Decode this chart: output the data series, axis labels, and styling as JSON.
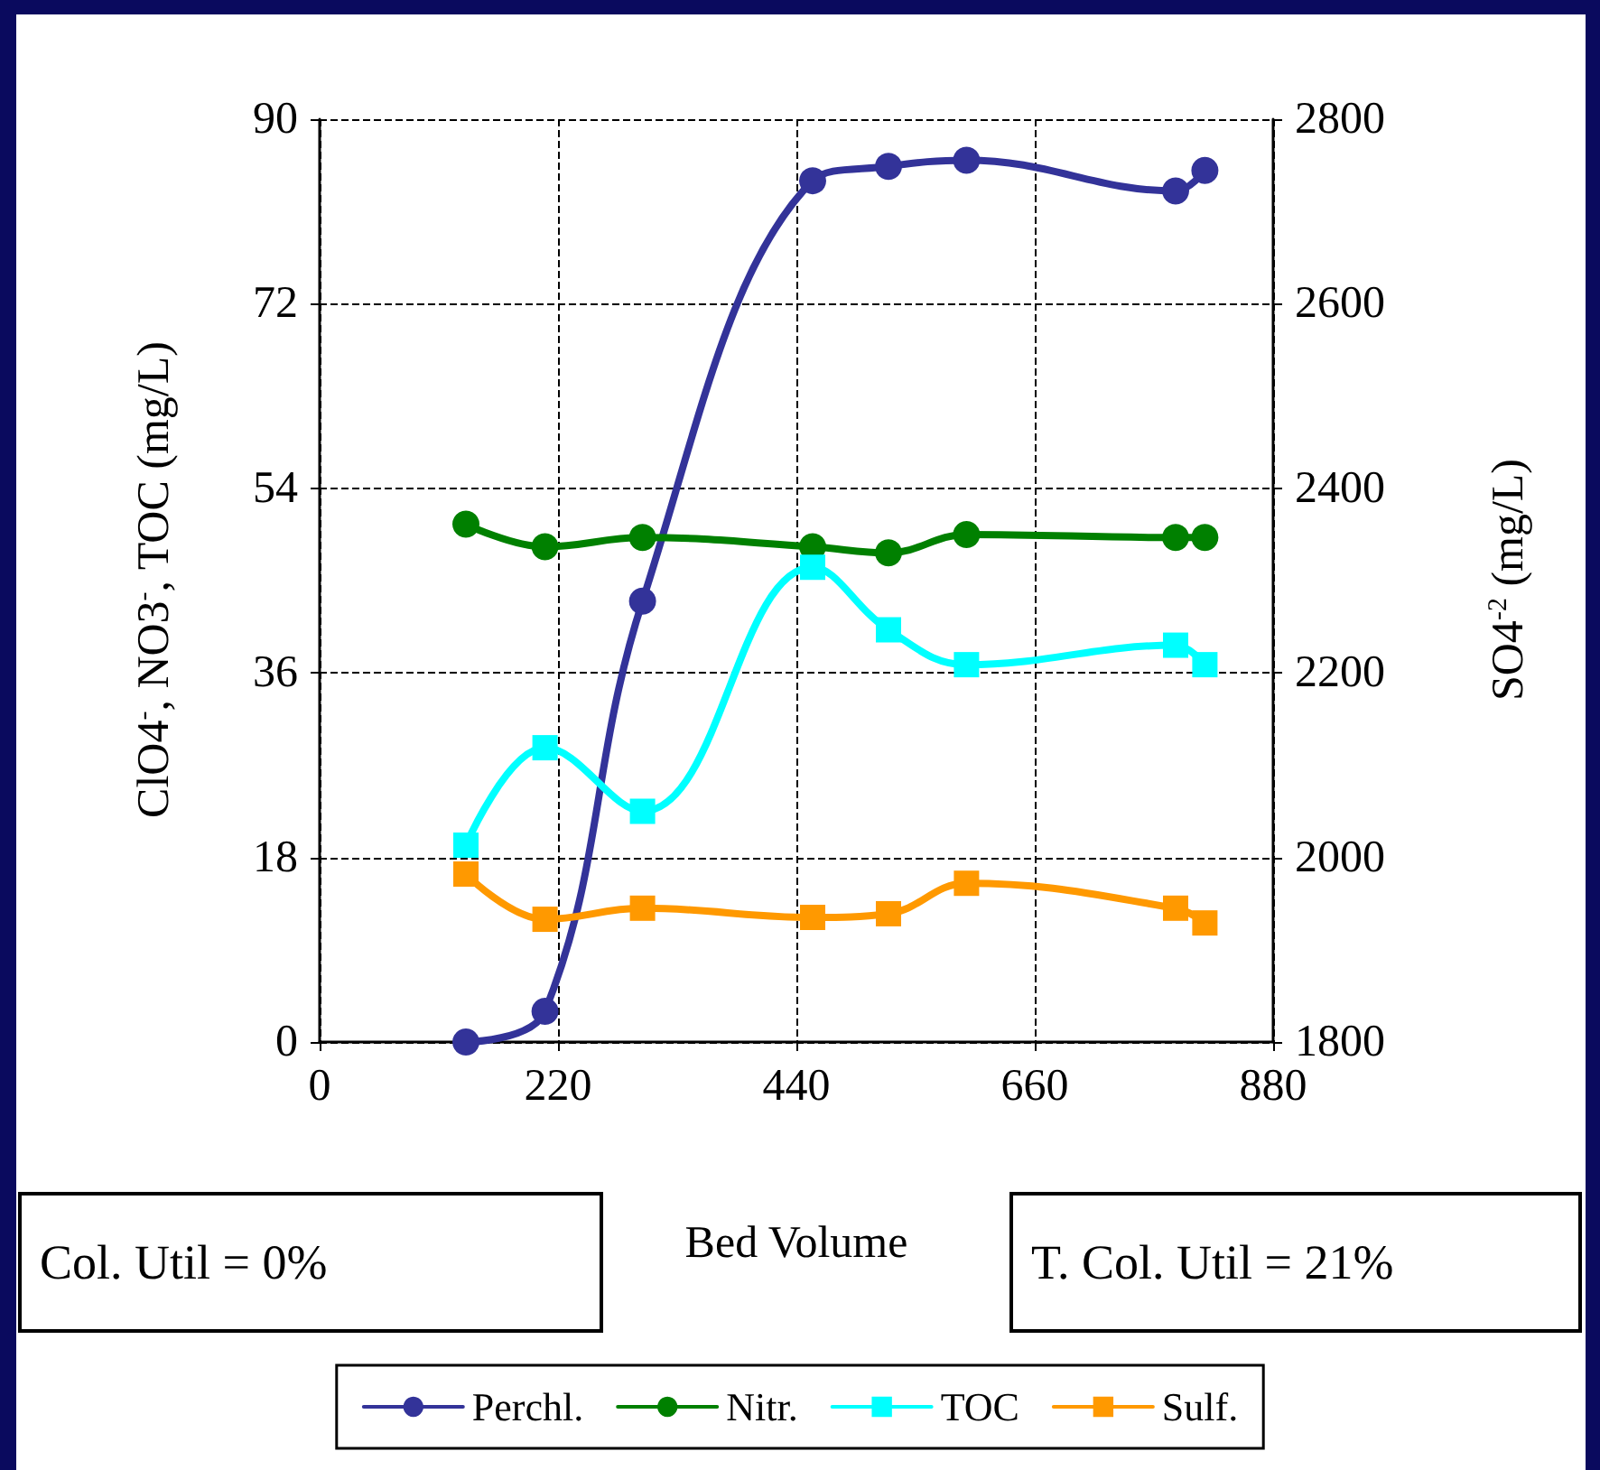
{
  "chart_data": {
    "type": "line",
    "xlabel": "Bed Volume",
    "ylabel": "ClO4$^{-}$, NO3$^{-}$, TOC (mg/L)",
    "y2label": "SO4$^{-2}$ (mg/L)",
    "x": [
      135,
      208,
      298,
      455,
      525,
      597,
      790,
      817
    ],
    "series": [
      {
        "name": "Perchl.",
        "color": "#333399",
        "marker": "circle",
        "values": [
          0,
          3,
          43,
          84,
          85.4,
          86,
          83,
          85
        ]
      },
      {
        "name": "Nitr.",
        "color": "#008000",
        "marker": "circle",
        "values": [
          50.5,
          48.3,
          49.2,
          48.3,
          47.7,
          49.5,
          49.2,
          49.2
        ]
      },
      {
        "name": "TOC",
        "color": "#00ffff",
        "marker": "square",
        "values": [
          19.2,
          28.7,
          22.5,
          46.3,
          40.2,
          36.8,
          38.7,
          36.8
        ]
      },
      {
        "name": "Sulf.",
        "color": "#ff9900",
        "marker": "square",
        "axis": "y2",
        "values": [
          1982,
          1933,
          1945,
          1935,
          1939,
          1972,
          1945,
          1929
        ]
      }
    ],
    "xlim": [
      0,
      880
    ],
    "xticks": [
      0,
      220,
      440,
      660,
      880
    ],
    "ylim": [
      0,
      90
    ],
    "yticks": [
      0,
      18,
      36,
      54,
      72,
      90
    ],
    "y2lim": [
      1800,
      2800
    ],
    "y2ticks": [
      1800,
      2000,
      2200,
      2400,
      2600,
      2800
    ],
    "grid": true,
    "legend": "bottom",
    "line_style": "solid",
    "annotations": [
      "Col. Util  = 0%",
      "T. Col. Util  = 21%"
    ]
  }
}
